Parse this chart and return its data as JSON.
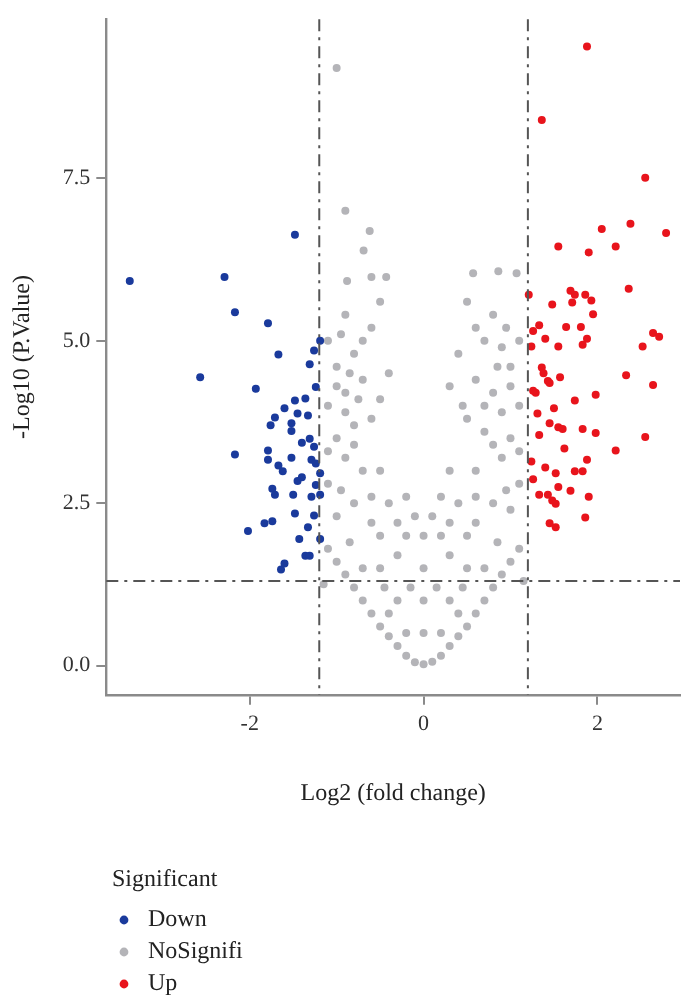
{
  "chart_data": {
    "type": "scatter",
    "xlabel": "Log2 (fold change)",
    "ylabel": "-Log10 (P.Value)",
    "legend_title": "Significant",
    "legend": "bottom left",
    "marker": "circle",
    "xlim": [
      -3.65,
      2.95
    ],
    "xticks": [
      -2,
      0,
      2
    ],
    "ylim": [
      -0.45,
      9.95
    ],
    "yticks": [
      {
        "value": 0,
        "label": "0.0"
      },
      {
        "value": 2.5,
        "label": "2.5"
      },
      {
        "value": 5,
        "label": "5.0"
      },
      {
        "value": 7.5,
        "label": "7.5"
      }
    ],
    "ref_lines": [
      {
        "axis": "x",
        "value": -1.2,
        "label": null,
        "color": "#555555",
        "line_style": "dashed"
      },
      {
        "axis": "x",
        "value": 1.2,
        "label": null,
        "color": "#555555",
        "line_style": "dashed"
      },
      {
        "axis": "y",
        "value": 1.3,
        "label": null,
        "color": "#555555",
        "line_style": "dashed"
      }
    ],
    "series": [
      {
        "name": "Down",
        "color": "#1a3a9c",
        "x": [
          -3.38,
          -1.48,
          -2.29,
          -2.17,
          -1.79,
          -1.67,
          -1.19,
          -1.26,
          -1.31,
          -2.57,
          -1.93,
          -1.24,
          -1.48,
          -1.36,
          -1.6,
          -1.45,
          -1.71,
          -1.33,
          -1.76,
          -1.52,
          -1.52,
          -1.31,
          -1.4,
          -1.26,
          -2.17,
          -1.79,
          -1.79,
          -1.52,
          -1.67,
          -1.29,
          -1.24,
          -1.62,
          -1.4,
          -1.45,
          -1.19,
          -1.74,
          -1.71,
          -1.5,
          -1.24,
          -1.19,
          -1.29,
          -1.48,
          -1.26,
          -1.83,
          -1.74,
          -2.02,
          -1.33,
          -1.43,
          -1.19,
          -1.36,
          -1.31,
          -1.64,
          -1.6
        ],
        "values": [
          5.92,
          6.63,
          5.98,
          5.44,
          5.27,
          4.79,
          5.0,
          4.85,
          4.64,
          4.44,
          4.26,
          4.29,
          4.08,
          4.11,
          3.96,
          3.88,
          3.82,
          3.85,
          3.7,
          3.73,
          3.61,
          3.49,
          3.43,
          3.37,
          3.25,
          3.31,
          3.17,
          3.2,
          3.08,
          3.17,
          3.11,
          2.99,
          2.9,
          2.84,
          2.96,
          2.72,
          2.63,
          2.63,
          2.78,
          2.63,
          2.6,
          2.34,
          2.31,
          2.19,
          2.22,
          2.07,
          2.13,
          1.95,
          1.95,
          1.69,
          1.69,
          1.48,
          1.57
        ]
      },
      {
        "name": "NoSignifi",
        "color": "#b4b4b8",
        "x": [
          0,
          -0.1,
          0.1,
          -0.2,
          0.2,
          -0.3,
          0.3,
          -0.4,
          0.4,
          -0.5,
          0.5,
          -0.6,
          0.6,
          -0.7,
          0.7,
          -0.8,
          0.8,
          -0.9,
          0.9,
          -1.0,
          1.0,
          -1.1,
          1.1,
          -1.15,
          1.15,
          0,
          0,
          0,
          0,
          -0.3,
          0.3,
          -0.5,
          0.5,
          -0.2,
          0.2,
          -0.6,
          0.6,
          -0.4,
          0.4,
          -0.8,
          0.8,
          -1.0,
          1.0,
          -1.1,
          1.1,
          -0.7,
          0.6,
          -0.9,
          0.9,
          -0.5,
          0.3,
          -1.0,
          1.0,
          -0.8,
          0.7,
          -0.6,
          0.5,
          -1.1,
          1.1,
          -0.9,
          0.8,
          -0.7,
          0.6,
          -1.0,
          1.0,
          -0.8,
          0.4,
          0.9,
          -1.1,
          1.1,
          -0.6,
          0.6,
          -0.9,
          0.8,
          -0.5,
          0.5,
          -0.88,
          -0.6,
          -0.43,
          0.57,
          0.86,
          1.07,
          -0.69,
          -0.62,
          -0.9,
          -1.0,
          -0.2,
          0.2,
          -0.4,
          0.4,
          -0.15,
          0.15,
          -0.45,
          0.45,
          -0.7,
          0.7,
          -0.3,
          0.3,
          -0.85,
          0.85,
          -0.5,
          0.5,
          -0.1,
          0.1,
          -0.3,
          0.3,
          -0.95,
          0.95,
          -0.6,
          0.6,
          -0.2,
          0.2,
          -1.1,
          1.1,
          -0.8,
          0.8,
          -0.9,
          0.9,
          -1.0,
          1.0,
          -0.75,
          0.7,
          -0.85,
          0.85,
          -0.95,
          0.95,
          -0.7,
          0.7,
          -0.4,
          0.3,
          -0.5,
          0.45
        ],
        "values": [
          0.02,
          0.05,
          0.06,
          0.15,
          0.15,
          0.3,
          0.3,
          0.45,
          0.45,
          0.6,
          0.6,
          0.8,
          0.8,
          1.0,
          1.0,
          1.2,
          1.2,
          1.4,
          1.4,
          1.6,
          1.6,
          1.8,
          1.8,
          1.25,
          1.3,
          0.5,
          1.0,
          1.5,
          2.0,
          1.0,
          1.0,
          1.5,
          1.5,
          2.0,
          2.0,
          2.2,
          2.2,
          2.5,
          2.5,
          2.5,
          2.5,
          2.3,
          2.4,
          2.8,
          2.8,
          3.0,
          3.0,
          3.2,
          3.2,
          3.0,
          3.0,
          3.5,
          3.5,
          3.7,
          3.6,
          3.8,
          3.8,
          4.0,
          4.0,
          4.2,
          4.2,
          4.4,
          4.4,
          4.6,
          4.6,
          4.8,
          4.8,
          4.9,
          5.0,
          5.0,
          5.2,
          5.2,
          5.4,
          5.4,
          5.6,
          5.6,
          5.92,
          5.98,
          5.98,
          6.04,
          6.07,
          6.04,
          6.39,
          6.69,
          7.0,
          9.2,
          0.5,
          0.5,
          0.8,
          0.8,
          1.2,
          1.2,
          1.2,
          1.2,
          1.5,
          1.5,
          1.7,
          1.7,
          1.9,
          1.9,
          2.0,
          2.0,
          2.3,
          2.3,
          2.2,
          2.2,
          2.7,
          2.7,
          2.6,
          2.6,
          2.6,
          2.6,
          3.3,
          3.3,
          3.4,
          3.4,
          3.9,
          3.9,
          4.3,
          4.3,
          4.1,
          4.0,
          4.5,
          4.6,
          5.1,
          5.2,
          5.0,
          5.0,
          4.5,
          4.3,
          4.1,
          4.0
        ]
      },
      {
        "name": "Up",
        "color": "#e8141c",
        "x": [
          1.88,
          1.36,
          2.55,
          2.05,
          2.38,
          2.79,
          1.55,
          1.9,
          2.21,
          2.36,
          1.21,
          1.48,
          1.69,
          1.74,
          1.86,
          1.93,
          1.71,
          1.95,
          1.33,
          1.26,
          1.64,
          1.81,
          1.88,
          1.83,
          1.4,
          1.55,
          1.24,
          2.64,
          2.71,
          2.52,
          1.36,
          1.38,
          1.57,
          1.43,
          2.33,
          2.64,
          1.98,
          1.29,
          1.74,
          1.26,
          1.45,
          1.31,
          1.5,
          1.45,
          1.55,
          1.6,
          1.83,
          1.98,
          1.33,
          2.55,
          1.62,
          2.21,
          1.88,
          1.24,
          1.4,
          1.74,
          1.83,
          1.52,
          1.26,
          1.55,
          1.69,
          1.33,
          1.43,
          1.48,
          1.9,
          1.52,
          1.86,
          1.45,
          1.52
        ],
        "values": [
          9.53,
          8.4,
          7.51,
          6.72,
          6.8,
          6.66,
          6.45,
          6.36,
          6.45,
          5.8,
          5.71,
          5.56,
          5.77,
          5.71,
          5.71,
          5.62,
          5.59,
          5.41,
          5.24,
          5.15,
          5.21,
          5.21,
          5.03,
          4.94,
          5.03,
          4.91,
          4.91,
          5.12,
          5.06,
          4.91,
          4.59,
          4.5,
          4.44,
          4.38,
          4.47,
          4.32,
          4.17,
          4.2,
          4.08,
          4.23,
          4.35,
          3.88,
          3.96,
          3.73,
          3.67,
          3.64,
          3.64,
          3.58,
          3.55,
          3.52,
          3.34,
          3.31,
          3.17,
          3.14,
          3.05,
          2.99,
          2.99,
          2.96,
          2.87,
          2.75,
          2.69,
          2.63,
          2.63,
          2.54,
          2.6,
          2.49,
          2.28,
          2.19,
          2.13
        ]
      }
    ]
  }
}
